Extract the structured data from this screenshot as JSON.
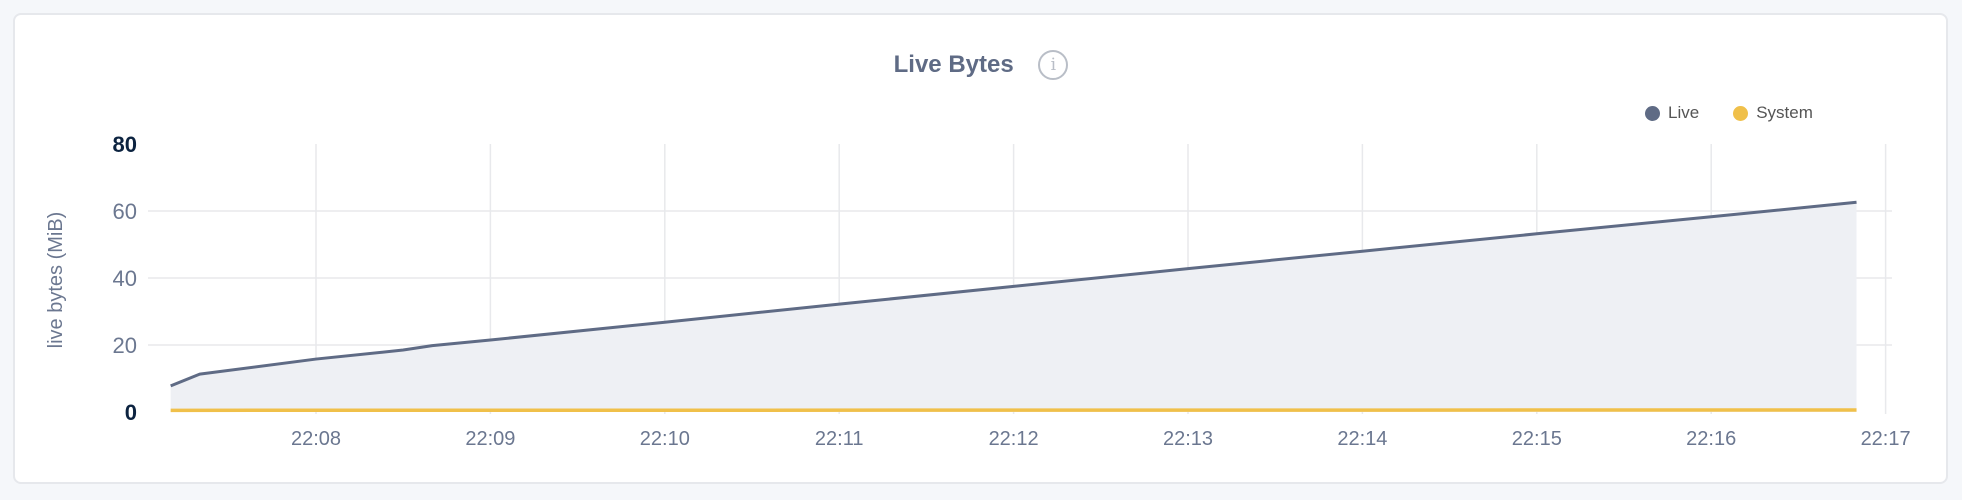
{
  "chart_data": {
    "type": "area",
    "title": "Live Bytes",
    "info_icon": "info-circle-icon",
    "ylabel": "live bytes (MiB)",
    "xlabel": "",
    "ylim": [
      0,
      80
    ],
    "yticks": [
      "0",
      "20",
      "40",
      "60",
      "80"
    ],
    "xticks": [
      "22:08",
      "22:09",
      "22:10",
      "22:11",
      "22:12",
      "22:13",
      "22:14",
      "22:15",
      "22:16",
      "22:17"
    ],
    "grid": true,
    "legend_placement": "top-right",
    "series": [
      {
        "name": "Live",
        "color": "#5f6b85",
        "fill": "#eef0f4",
        "points": [
          [
            "22:07:10",
            7.8
          ],
          [
            "22:07:20",
            11.3
          ],
          [
            "22:08:00",
            15.8
          ],
          [
            "22:08:30",
            18.5
          ],
          [
            "22:08:40",
            19.8
          ],
          [
            "22:09:00",
            21.5
          ],
          [
            "22:10:00",
            26.8
          ],
          [
            "22:11:00",
            32.2
          ],
          [
            "22:12:00",
            37.5
          ],
          [
            "22:13:00",
            42.8
          ],
          [
            "22:14:00",
            48.0
          ],
          [
            "22:15:00",
            53.2
          ],
          [
            "22:16:00",
            58.3
          ],
          [
            "22:16:50",
            62.6
          ]
        ]
      },
      {
        "name": "System",
        "color": "#f0c04a",
        "points": [
          [
            "22:07:10",
            0.5
          ],
          [
            "22:16:50",
            0.6
          ]
        ]
      }
    ]
  }
}
